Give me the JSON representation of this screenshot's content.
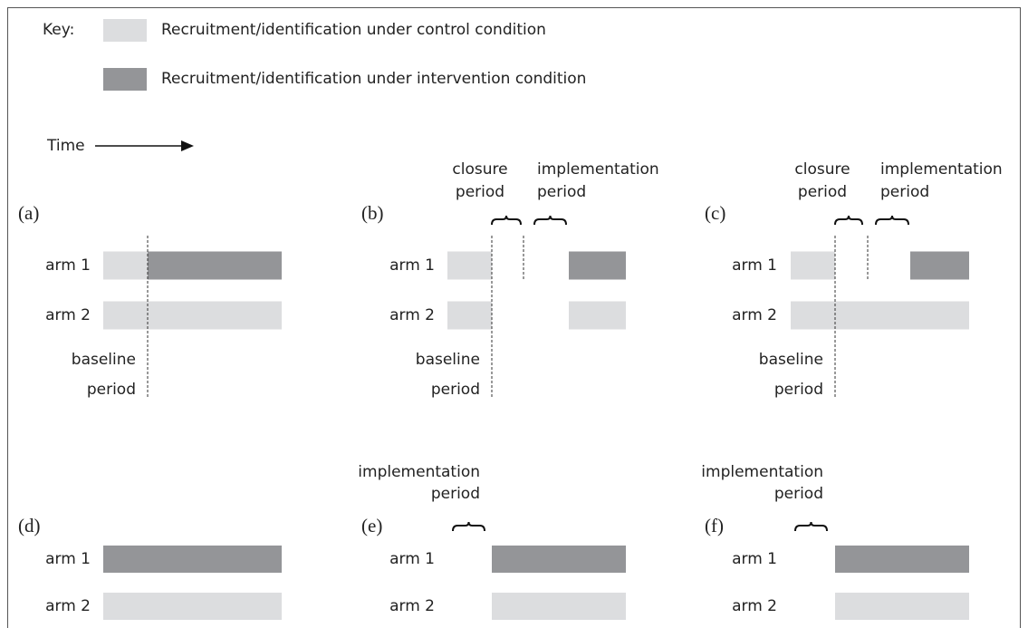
{
  "key": {
    "label": "Key:",
    "items": [
      "Recruitment/identification under control condition",
      "Recruitment/identification under intervention condition"
    ]
  },
  "time": "Time",
  "panels": [
    {
      "label": "(a)",
      "arms": [
        "arm 1",
        "arm 2"
      ],
      "baseline": [
        "baseline",
        "period"
      ]
    },
    {
      "label": "(b)",
      "arms": [
        "arm 1",
        "arm 2"
      ],
      "closure": [
        "closure",
        "period"
      ],
      "implementation": [
        "implementation",
        "period"
      ],
      "baseline": [
        "baseline",
        "period"
      ]
    },
    {
      "label": "(c)",
      "arms": [
        "arm 1",
        "arm 2"
      ],
      "closure": [
        "closure",
        "period"
      ],
      "implementation": [
        "implementation",
        "period"
      ],
      "baseline": [
        "baseline",
        "period"
      ]
    },
    {
      "label": "(d)",
      "arms": [
        "arm 1",
        "arm 2"
      ]
    },
    {
      "label": "(e)",
      "arms": [
        "arm 1",
        "arm 2"
      ],
      "implementation": [
        "implementation",
        "period"
      ]
    },
    {
      "label": "(f)",
      "arms": [
        "arm 1",
        "arm 2"
      ],
      "implementation": [
        "implementation",
        "period"
      ]
    }
  ]
}
